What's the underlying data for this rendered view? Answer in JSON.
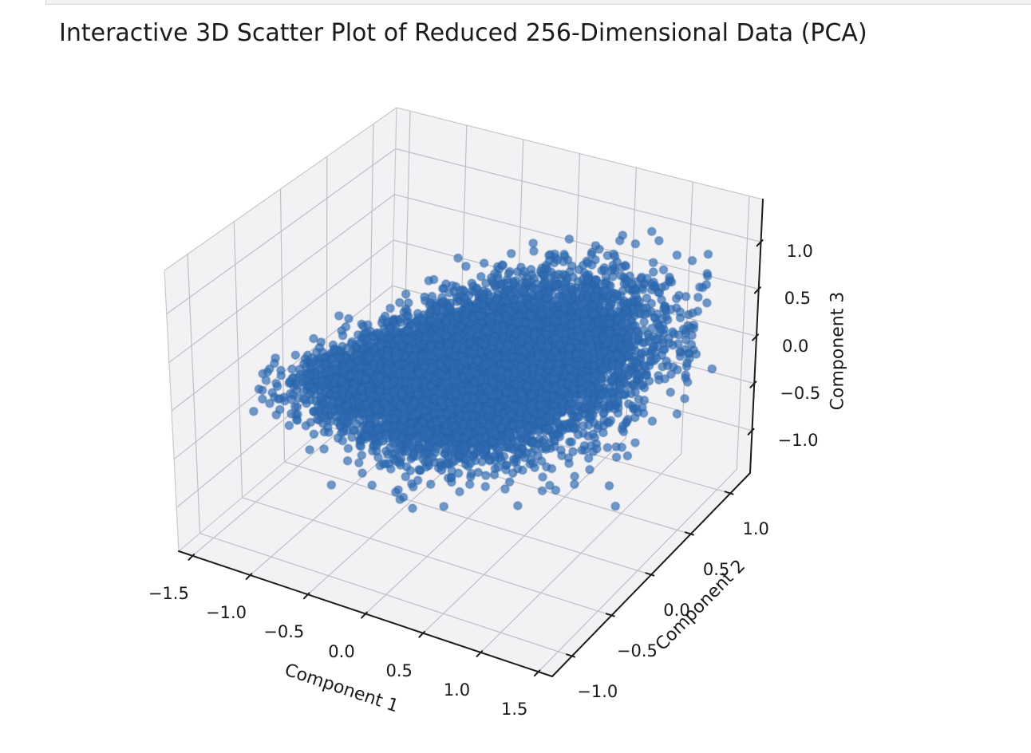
{
  "header": {
    "title": "Interactive 3D Scatter Plot of Reduced 256-Dimensional Data (PCA)"
  },
  "chart_data": {
    "type": "scatter",
    "projection": "3d",
    "title": "Interactive 3D Scatter Plot of Reduced 256-Dimensional Data (PCA)",
    "xlabel": "Component 1",
    "ylabel": "Component 2",
    "zlabel": "Component 3",
    "x_ticks": {
      "values": [
        -1.5,
        -1.0,
        -0.5,
        0.0,
        0.5,
        1.0,
        1.5
      ],
      "labels": [
        "−1.5",
        "−1.0",
        "−0.5",
        "0.0",
        "0.5",
        "1.0",
        "1.5"
      ]
    },
    "y_ticks": {
      "values": [
        -1.0,
        -0.5,
        0.0,
        0.5,
        1.0
      ],
      "labels": [
        "−1.0",
        "−0.5",
        "0.0",
        "0.5",
        "1.0"
      ]
    },
    "z_ticks": {
      "values": [
        -1.0,
        -0.5,
        0.0,
        0.5,
        1.0
      ],
      "labels": [
        "−1.0",
        "−0.5",
        "0.0",
        "0.5",
        "1.0"
      ]
    },
    "xlim": [
      -1.62,
      1.62
    ],
    "ylim": [
      -1.25,
      1.25
    ],
    "zlim": [
      -1.45,
      1.45
    ],
    "view": {
      "elev": 30,
      "azim": -60
    },
    "grid": true,
    "legend": false,
    "colors": {
      "marker": "#2f6bb1",
      "marker_edge": "#285fa8",
      "pane": "#f2f2f4",
      "grid_line": "#bfbfc4",
      "pane_edge": "#c8c8cc",
      "spine": "#1c1c1c",
      "text": "#1a1a1a"
    },
    "marker": {
      "alpha": 0.68,
      "edge_alpha": 0.5,
      "radius_px": 5
    },
    "point_cloud": {
      "description": "Single dense unlabeled cloud of PCA-reduced points centered near the origin, tapering to a point toward negative Component 1 and fanning out toward positive Component 1; sparse outliers on all sides.",
      "n": 9000,
      "seed": 7,
      "center": [
        0.05,
        0.08,
        0.0
      ],
      "sigma": [
        0.58,
        0.4,
        0.34
      ],
      "corr_y_per_x": 0.1,
      "corr_z_per_x": 0.38,
      "taper": {
        "min_width": 0.3,
        "full_width_at_x": 0.4,
        "start_x": -1.8
      },
      "x_range": [
        -1.7,
        1.65
      ],
      "y_range": [
        -1.15,
        1.15
      ],
      "z_range": [
        -1.05,
        1.05
      ]
    }
  }
}
